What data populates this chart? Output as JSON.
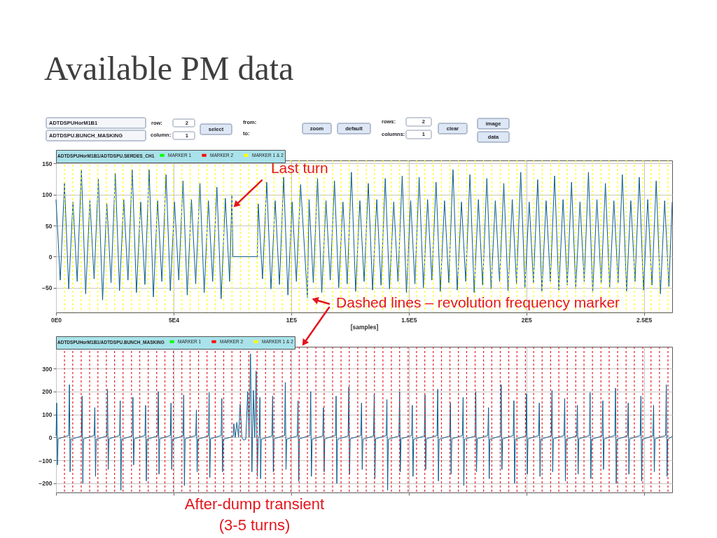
{
  "chart_data": [
    {
      "type": "other",
      "annotations": [
        "ADTDSPUHorM1B1",
        "ADTDSPU.BUNCH_MASKING",
        "row:",
        "2",
        "column:",
        "1",
        "select",
        "from:",
        "to:",
        "zoom",
        "default",
        "rows:",
        "2",
        "columns:",
        "1",
        "clear",
        "image",
        "data"
      ]
    },
    {
      "type": "line",
      "title": "Available PM data",
      "xlabel": "[samples]",
      "legend_title": "ADTDSPUHorM1B1/ADTDSPU.SERDES_CH1",
      "legend": "top left",
      "grid": true,
      "xlim": [
        0,
        262000
      ],
      "ylim": [
        -90,
        155
      ],
      "xticks": [
        {
          "value": 0,
          "label": "0E0"
        },
        {
          "value": 50000,
          "label": "5E4"
        },
        {
          "value": 100000,
          "label": "1E5"
        },
        {
          "value": 150000,
          "label": "1.5E5"
        },
        {
          "value": 200000,
          "label": "2E5"
        },
        {
          "value": 250000,
          "label": "2.5E5"
        }
      ],
      "yticks": [
        -50,
        0,
        50,
        100,
        150
      ],
      "series": [
        {
          "color": "#0b5c8c",
          "x": [
            0,
            1800,
            3600,
            5400,
            7200,
            9000,
            10800,
            12600,
            14400,
            16200,
            18000,
            19800,
            21600,
            23400,
            25200,
            27000,
            28800,
            30600,
            32400,
            34200,
            36000,
            37800,
            39600,
            41400,
            43200,
            45000,
            46800,
            48600,
            50400,
            52200,
            54000,
            55800,
            57600,
            59400,
            61200,
            63000,
            64800,
            66600,
            68400,
            70200,
            72000,
            73800,
            74800,
            75200,
            85600,
            86000,
            87800,
            89600,
            91400,
            93200,
            95000,
            96800,
            98600,
            100400,
            102200,
            104000,
            106900,
            107600,
            109400,
            111200,
            113000,
            114800,
            116600,
            118400,
            120200,
            122000,
            123800,
            125600,
            127400,
            129200,
            131000,
            132800,
            134600,
            136400,
            138200,
            140000,
            141800,
            143600,
            145400,
            147200,
            149000,
            150800,
            152600,
            154400,
            156200,
            158000,
            159800,
            161600,
            163400,
            165200,
            167000,
            168800,
            170600,
            172400,
            174200,
            176000,
            177800,
            179600,
            181400,
            183200,
            185000,
            186800,
            188600,
            190400,
            192200,
            194000,
            195800,
            197600,
            199400,
            201200,
            203000,
            204800,
            206600,
            208400,
            210200,
            212000,
            213800,
            215600,
            217400,
            219200,
            221000,
            222800,
            224600,
            226400,
            228200,
            230000,
            231800,
            233600,
            235400,
            237200,
            239000,
            240800,
            242600,
            244400,
            246200,
            248000,
            249800,
            251600,
            253400,
            255200,
            257000,
            258800,
            260600,
            262000
          ],
          "values": [
            92,
            -38,
            118,
            -52,
            88,
            -40,
            140,
            -60,
            90,
            -36,
            125,
            -70,
            86,
            -42,
            134,
            -55,
            92,
            -38,
            140,
            -58,
            88,
            -45,
            140,
            -65,
            90,
            -40,
            132,
            -55,
            88,
            -38,
            122,
            -62,
            92,
            -44,
            118,
            -58,
            90,
            -40,
            112,
            -68,
            94,
            -40,
            100,
            0,
            0,
            85,
            -36,
            120,
            -52,
            90,
            -45,
            128,
            -62,
            88,
            -40,
            116,
            -66,
            92,
            -42,
            126,
            -58,
            90,
            -38,
            122,
            -50,
            88,
            -44,
            136,
            -56,
            90,
            -40,
            118,
            -54,
            92,
            -46,
            126,
            -52,
            88,
            -40,
            130,
            -58,
            90,
            -44,
            128,
            -50,
            92,
            -38,
            120,
            -56,
            90,
            -42,
            140,
            -54,
            88,
            -40,
            132,
            -58,
            92,
            -46,
            126,
            -52,
            90,
            -40,
            118,
            -55,
            92,
            -44,
            136,
            -50,
            88,
            -42,
            124,
            -56,
            90,
            -40,
            130,
            -54,
            92,
            -46,
            120,
            -52,
            88,
            -40,
            136,
            -58,
            92,
            -44,
            118,
            -50,
            90,
            -42,
            132,
            -56,
            90,
            -40,
            128,
            -54,
            92,
            -46,
            122,
            -60,
            90,
            -48,
            88
          ]
        },
        {
          "name": "MARKER 1",
          "color": "#00ff00"
        },
        {
          "name": "MARKER 2",
          "color": "#ff0000"
        },
        {
          "name": "MARKER 1 & 2",
          "color": "#ffff00"
        }
      ],
      "ref_lines": [
        {
          "axis": "x",
          "value": 3600,
          "color": "#ffff00",
          "line_style": "dashed"
        },
        {
          "axis": "x",
          "value": 7100,
          "color": "#ffff00",
          "line_style": "dashed"
        },
        {
          "axis": "x",
          "value": 10700,
          "color": "#ffff00",
          "line_style": "dashed"
        },
        {
          "axis": "x",
          "value": 14300,
          "color": "#ffff00",
          "line_style": "dashed"
        },
        {
          "axis": "x",
          "value": 17800,
          "color": "#ffff00",
          "line_style": "dashed"
        },
        {
          "axis": "x",
          "value": 21400,
          "color": "#ffff00",
          "line_style": "dashed"
        },
        {
          "axis": "x",
          "value": 24900,
          "color": "#ffff00",
          "line_style": "dashed"
        },
        {
          "axis": "x",
          "value": 28500,
          "color": "#ffff00",
          "line_style": "dashed"
        },
        {
          "axis": "x",
          "value": 32100,
          "color": "#ffff00",
          "line_style": "dashed"
        },
        {
          "axis": "x",
          "value": 35600,
          "color": "#ffff00",
          "line_style": "dashed"
        },
        {
          "axis": "x",
          "value": 39200,
          "color": "#ffff00",
          "line_style": "dashed"
        },
        {
          "axis": "x",
          "value": 42800,
          "color": "#ffff00",
          "line_style": "dashed"
        },
        {
          "axis": "x",
          "value": 46300,
          "color": "#ffff00",
          "line_style": "dashed"
        },
        {
          "axis": "x",
          "value": 49900,
          "color": "#ffff00",
          "line_style": "dashed"
        },
        {
          "axis": "x",
          "value": 53500,
          "color": "#ffff00",
          "line_style": "dashed"
        },
        {
          "axis": "x",
          "value": 57000,
          "color": "#ffff00",
          "line_style": "dashed"
        },
        {
          "axis": "x",
          "value": 60600,
          "color": "#ffff00",
          "line_style": "dashed"
        },
        {
          "axis": "x",
          "value": 64200,
          "color": "#ffff00",
          "line_style": "dashed"
        },
        {
          "axis": "x",
          "value": 67700,
          "color": "#ffff00",
          "line_style": "dashed"
        },
        {
          "axis": "x",
          "value": 71300,
          "color": "#ffff00",
          "line_style": "dashed"
        },
        {
          "axis": "x",
          "value": 74800,
          "color": "#ffff00",
          "line_style": "dashed"
        },
        {
          "axis": "x",
          "value": 78400,
          "color": "#ffff00",
          "line_style": "dashed"
        },
        {
          "axis": "x",
          "value": 82000,
          "color": "#ffff00",
          "line_style": "dashed"
        },
        {
          "axis": "x",
          "value": 85500,
          "color": "#ffff00",
          "line_style": "dashed"
        },
        {
          "axis": "x",
          "value": 89100,
          "color": "#ffff00",
          "line_style": "dashed"
        },
        {
          "axis": "x",
          "value": 92700,
          "color": "#ffff00",
          "line_style": "dashed"
        },
        {
          "axis": "x",
          "value": 96200,
          "color": "#ffff00",
          "line_style": "dashed"
        },
        {
          "axis": "x",
          "value": 99800,
          "color": "#ffff00",
          "line_style": "dashed"
        },
        {
          "axis": "x",
          "value": 103400,
          "color": "#ffff00",
          "line_style": "dashed"
        },
        {
          "axis": "x",
          "value": 106900,
          "color": "#ffff00",
          "line_style": "dashed"
        },
        {
          "axis": "x",
          "value": 110500,
          "color": "#ffff00",
          "line_style": "dashed"
        },
        {
          "axis": "x",
          "value": 114000,
          "color": "#ffff00",
          "line_style": "dashed"
        },
        {
          "axis": "x",
          "value": 117600,
          "color": "#ffff00",
          "line_style": "dashed"
        },
        {
          "axis": "x",
          "value": 121200,
          "color": "#ffff00",
          "line_style": "dashed"
        },
        {
          "axis": "x",
          "value": 124700,
          "color": "#ffff00",
          "line_style": "dashed"
        },
        {
          "axis": "x",
          "value": 128300,
          "color": "#ffff00",
          "line_style": "dashed"
        },
        {
          "axis": "x",
          "value": 131900,
          "color": "#ffff00",
          "line_style": "dashed"
        },
        {
          "axis": "x",
          "value": 135400,
          "color": "#ffff00",
          "line_style": "dashed"
        },
        {
          "axis": "x",
          "value": 139000,
          "color": "#ffff00",
          "line_style": "dashed"
        },
        {
          "axis": "x",
          "value": 142600,
          "color": "#ffff00",
          "line_style": "dashed"
        },
        {
          "axis": "x",
          "value": 146100,
          "color": "#ffff00",
          "line_style": "dashed"
        },
        {
          "axis": "x",
          "value": 149700,
          "color": "#ffff00",
          "line_style": "dashed"
        },
        {
          "axis": "x",
          "value": 153300,
          "color": "#ffff00",
          "line_style": "dashed"
        },
        {
          "axis": "x",
          "value": 156800,
          "color": "#ffff00",
          "line_style": "dashed"
        },
        {
          "axis": "x",
          "value": 160400,
          "color": "#ffff00",
          "line_style": "dashed"
        },
        {
          "axis": "x",
          "value": 163900,
          "color": "#ffff00",
          "line_style": "dashed"
        },
        {
          "axis": "x",
          "value": 167500,
          "color": "#ffff00",
          "line_style": "dashed"
        },
        {
          "axis": "x",
          "value": 171100,
          "color": "#ffff00",
          "line_style": "dashed"
        },
        {
          "axis": "x",
          "value": 174600,
          "color": "#ffff00",
          "line_style": "dashed"
        },
        {
          "axis": "x",
          "value": 178200,
          "color": "#ffff00",
          "line_style": "dashed"
        },
        {
          "axis": "x",
          "value": 181800,
          "color": "#ffff00",
          "line_style": "dashed"
        },
        {
          "axis": "x",
          "value": 185300,
          "color": "#ffff00",
          "line_style": "dashed"
        },
        {
          "axis": "x",
          "value": 188900,
          "color": "#ffff00",
          "line_style": "dashed"
        },
        {
          "axis": "x",
          "value": 192500,
          "color": "#ffff00",
          "line_style": "dashed"
        },
        {
          "axis": "x",
          "value": 196000,
          "color": "#ffff00",
          "line_style": "dashed"
        },
        {
          "axis": "x",
          "value": 199600,
          "color": "#ffff00",
          "line_style": "dashed"
        },
        {
          "axis": "x",
          "value": 203100,
          "color": "#ffff00",
          "line_style": "dashed"
        },
        {
          "axis": "x",
          "value": 206700,
          "color": "#ffff00",
          "line_style": "dashed"
        },
        {
          "axis": "x",
          "value": 210300,
          "color": "#ffff00",
          "line_style": "dashed"
        },
        {
          "axis": "x",
          "value": 213800,
          "color": "#ffff00",
          "line_style": "dashed"
        },
        {
          "axis": "x",
          "value": 217400,
          "color": "#ffff00",
          "line_style": "dashed"
        },
        {
          "axis": "x",
          "value": 221000,
          "color": "#ffff00",
          "line_style": "dashed"
        },
        {
          "axis": "x",
          "value": 224500,
          "color": "#ffff00",
          "line_style": "dashed"
        },
        {
          "axis": "x",
          "value": 228100,
          "color": "#ffff00",
          "line_style": "dashed"
        },
        {
          "axis": "x",
          "value": 231700,
          "color": "#ffff00",
          "line_style": "dashed"
        },
        {
          "axis": "x",
          "value": 235200,
          "color": "#ffff00",
          "line_style": "dashed"
        },
        {
          "axis": "x",
          "value": 238800,
          "color": "#ffff00",
          "line_style": "dashed"
        },
        {
          "axis": "x",
          "value": 242400,
          "color": "#ffff00",
          "line_style": "dashed"
        },
        {
          "axis": "x",
          "value": 245900,
          "color": "#ffff00",
          "line_style": "dashed"
        },
        {
          "axis": "x",
          "value": 249500,
          "color": "#ffff00",
          "line_style": "dashed"
        },
        {
          "axis": "x",
          "value": 253000,
          "color": "#ffff00",
          "line_style": "dashed"
        },
        {
          "axis": "x",
          "value": 256600,
          "color": "#ffff00",
          "line_style": "dashed"
        },
        {
          "axis": "x",
          "value": 260200,
          "color": "#ffff00",
          "line_style": "dashed"
        }
      ],
      "annotations": [
        {
          "text": "Last turn",
          "x": 75600,
          "y": 80
        },
        {
          "text": "Dashed lines – revolution frequency marker",
          "x": 106900,
          "y": -66
        }
      ]
    },
    {
      "type": "line",
      "legend_title": "ADTDSPUHorM1B1/ADTDSPU.BUNCH_MASKING",
      "legend": "top left",
      "grid": true,
      "tick_labels": "y",
      "xlim": [
        0,
        262000
      ],
      "ylim": [
        -240,
        395
      ],
      "xticks": [
        0,
        50000,
        100000,
        150000,
        200000,
        250000
      ],
      "yticks": [
        -200,
        -100,
        0,
        100,
        200,
        300
      ],
      "series": [
        {
          "color": "#0b5c8c",
          "x": [
            0,
            300,
            600,
            900,
            5400,
            5700,
            6000,
            6300,
            10800,
            11100,
            11400,
            11700,
            16200,
            16500,
            16800,
            17100,
            21600,
            21900,
            22200,
            22500,
            27000,
            27300,
            27600,
            27900,
            32400,
            32700,
            33000,
            33300,
            37800,
            38100,
            38400,
            38700,
            43200,
            43500,
            43800,
            44100,
            48600,
            48900,
            49200,
            49500,
            54000,
            54300,
            54600,
            54900,
            59400,
            59700,
            60000,
            60300,
            64800,
            65100,
            65400,
            65700,
            70200,
            70500,
            70800,
            71100,
            75400,
            75600,
            76200,
            76900,
            77600,
            78300,
            79000,
            79800,
            80700,
            81500,
            82100,
            82700,
            83300,
            83900,
            84500,
            85100,
            85600,
            86000,
            86400,
            86700,
            87000,
            87300,
            91800,
            92100,
            92400,
            92700,
            97200,
            97500,
            97800,
            98100,
            102600,
            102900,
            103200,
            103500,
            108000,
            108300,
            108600,
            108900,
            113400,
            113700,
            114000,
            114300,
            118800,
            119100,
            119400,
            119700,
            124200,
            124500,
            124800,
            125100,
            129600,
            129900,
            130200,
            130500,
            135000,
            135300,
            135600,
            135900,
            140400,
            140700,
            141000,
            141300,
            145800,
            146100,
            146400,
            146700,
            151200,
            151500,
            151800,
            152100,
            156600,
            156900,
            157200,
            157500,
            162000,
            162300,
            162600,
            162900,
            167400,
            167700,
            168000,
            168300,
            172800,
            173100,
            173400,
            173700,
            178200,
            178500,
            178800,
            179100,
            183600,
            183900,
            184200,
            184500,
            189000,
            189300,
            189600,
            189900,
            194400,
            194700,
            195000,
            195300,
            199800,
            200100,
            200400,
            200700,
            205200,
            205500,
            205800,
            206100,
            210600,
            210900,
            211200,
            211500,
            216000,
            216300,
            216600,
            216900,
            221400,
            221700,
            222000,
            222300,
            226800,
            227100,
            227400,
            227700,
            232200,
            232500,
            232800,
            233100,
            237600,
            237900,
            238200,
            238500,
            243000,
            243300,
            243600,
            243900,
            248400,
            248700,
            249000,
            249300,
            253800,
            254100,
            254400,
            254700,
            259200,
            259500,
            259800,
            260100,
            262000
          ],
          "values": [
            6,
            150,
            -120,
            -6,
            8,
            230,
            -150,
            -8,
            5,
            180,
            -200,
            -6,
            8,
            130,
            -170,
            -8,
            6,
            210,
            -140,
            -6,
            8,
            160,
            -230,
            -8,
            6,
            175,
            -120,
            -6,
            8,
            140,
            -190,
            -8,
            6,
            200,
            -160,
            -6,
            8,
            150,
            -140,
            -8,
            6,
            185,
            -210,
            -6,
            8,
            120,
            -150,
            -8,
            6,
            195,
            -175,
            -6,
            8,
            170,
            -150,
            -8,
            4,
            60,
            0,
            66,
            2,
            145,
            0,
            -12,
            -8,
            200,
            0,
            364,
            -150,
            205,
            0,
            289,
            -170,
            -6,
            8,
            175,
            -180,
            -8,
            6,
            180,
            -150,
            -6,
            8,
            240,
            -140,
            -8,
            6,
            160,
            -190,
            -6,
            8,
            200,
            -170,
            -8,
            6,
            130,
            -150,
            -6,
            8,
            180,
            -200,
            -8,
            6,
            220,
            -160,
            -6,
            8,
            150,
            -140,
            -8,
            6,
            190,
            -180,
            -6,
            8,
            165,
            -230,
            -8,
            6,
            200,
            -150,
            -6,
            8,
            140,
            -170,
            -8,
            6,
            185,
            -140,
            -6,
            8,
            210,
            -190,
            -8,
            6,
            150,
            -160,
            -6,
            8,
            175,
            -210,
            -8,
            6,
            200,
            -150,
            -6,
            8,
            130,
            -180,
            -8,
            6,
            230,
            -140,
            -6,
            8,
            160,
            -200,
            -8,
            6,
            190,
            -160,
            -6,
            8,
            150,
            -170,
            -8,
            6,
            205,
            -150,
            -6,
            8,
            170,
            -190,
            -8,
            6,
            140,
            -160,
            -6,
            8,
            195,
            -180,
            -8,
            6,
            160,
            -140,
            -6,
            8,
            215,
            -200,
            -8,
            6,
            150,
            -160,
            -6,
            8,
            180,
            -190,
            -8,
            6,
            140,
            -150,
            -6,
            8,
            230,
            -170,
            -8,
            4
          ]
        },
        {
          "name": "MARKER 1",
          "color": "#00ff00"
        },
        {
          "name": "MARKER 2",
          "color": "#ff0000"
        },
        {
          "name": "MARKER 1 & 2",
          "color": "#ffff00"
        }
      ],
      "ref_lines": [
        {
          "axis": "x",
          "value": 3600,
          "color": "#ee1c25",
          "line_style": "dashed"
        },
        {
          "axis": "x",
          "value": 7100,
          "color": "#ee1c25",
          "line_style": "dashed"
        },
        {
          "axis": "x",
          "value": 10700,
          "color": "#ee1c25",
          "line_style": "dashed"
        },
        {
          "axis": "x",
          "value": 14300,
          "color": "#ee1c25",
          "line_style": "dashed"
        },
        {
          "axis": "x",
          "value": 17800,
          "color": "#ee1c25",
          "line_style": "dashed"
        },
        {
          "axis": "x",
          "value": 21400,
          "color": "#ee1c25",
          "line_style": "dashed"
        },
        {
          "axis": "x",
          "value": 24900,
          "color": "#ee1c25",
          "line_style": "dashed"
        },
        {
          "axis": "x",
          "value": 28500,
          "color": "#ee1c25",
          "line_style": "dashed"
        },
        {
          "axis": "x",
          "value": 32100,
          "color": "#ee1c25",
          "line_style": "dashed"
        },
        {
          "axis": "x",
          "value": 35600,
          "color": "#ee1c25",
          "line_style": "dashed"
        },
        {
          "axis": "x",
          "value": 39200,
          "color": "#ee1c25",
          "line_style": "dashed"
        },
        {
          "axis": "x",
          "value": 42800,
          "color": "#ee1c25",
          "line_style": "dashed"
        },
        {
          "axis": "x",
          "value": 46300,
          "color": "#ee1c25",
          "line_style": "dashed"
        },
        {
          "axis": "x",
          "value": 49900,
          "color": "#ee1c25",
          "line_style": "dashed"
        },
        {
          "axis": "x",
          "value": 53500,
          "color": "#ee1c25",
          "line_style": "dashed"
        },
        {
          "axis": "x",
          "value": 57000,
          "color": "#ee1c25",
          "line_style": "dashed"
        },
        {
          "axis": "x",
          "value": 60600,
          "color": "#ee1c25",
          "line_style": "dashed"
        },
        {
          "axis": "x",
          "value": 64200,
          "color": "#ee1c25",
          "line_style": "dashed"
        },
        {
          "axis": "x",
          "value": 67700,
          "color": "#ee1c25",
          "line_style": "dashed"
        },
        {
          "axis": "x",
          "value": 71300,
          "color": "#ee1c25",
          "line_style": "dashed"
        },
        {
          "axis": "x",
          "value": 74800,
          "color": "#ee1c25",
          "line_style": "dashed"
        },
        {
          "axis": "x",
          "value": 78400,
          "color": "#ee1c25",
          "line_style": "dashed"
        },
        {
          "axis": "x",
          "value": 82000,
          "color": "#ee1c25",
          "line_style": "dashed"
        },
        {
          "axis": "x",
          "value": 85500,
          "color": "#ee1c25",
          "line_style": "dashed"
        },
        {
          "axis": "x",
          "value": 89100,
          "color": "#ee1c25",
          "line_style": "dashed"
        },
        {
          "axis": "x",
          "value": 92700,
          "color": "#ee1c25",
          "line_style": "dashed"
        },
        {
          "axis": "x",
          "value": 96200,
          "color": "#ee1c25",
          "line_style": "dashed"
        },
        {
          "axis": "x",
          "value": 99800,
          "color": "#ee1c25",
          "line_style": "dashed"
        },
        {
          "axis": "x",
          "value": 103400,
          "color": "#ee1c25",
          "line_style": "dashed"
        },
        {
          "axis": "x",
          "value": 106900,
          "color": "#ee1c25",
          "line_style": "dashed"
        },
        {
          "axis": "x",
          "value": 110500,
          "color": "#ee1c25",
          "line_style": "dashed"
        },
        {
          "axis": "x",
          "value": 114000,
          "color": "#ee1c25",
          "line_style": "dashed"
        },
        {
          "axis": "x",
          "value": 117600,
          "color": "#ee1c25",
          "line_style": "dashed"
        },
        {
          "axis": "x",
          "value": 121200,
          "color": "#ee1c25",
          "line_style": "dashed"
        },
        {
          "axis": "x",
          "value": 124700,
          "color": "#ee1c25",
          "line_style": "dashed"
        },
        {
          "axis": "x",
          "value": 128300,
          "color": "#ee1c25",
          "line_style": "dashed"
        },
        {
          "axis": "x",
          "value": 131900,
          "color": "#ee1c25",
          "line_style": "dashed"
        },
        {
          "axis": "x",
          "value": 135400,
          "color": "#ee1c25",
          "line_style": "dashed"
        },
        {
          "axis": "x",
          "value": 139000,
          "color": "#ee1c25",
          "line_style": "dashed"
        },
        {
          "axis": "x",
          "value": 142600,
          "color": "#ee1c25",
          "line_style": "dashed"
        },
        {
          "axis": "x",
          "value": 146100,
          "color": "#ee1c25",
          "line_style": "dashed"
        },
        {
          "axis": "x",
          "value": 149700,
          "color": "#ee1c25",
          "line_style": "dashed"
        },
        {
          "axis": "x",
          "value": 153300,
          "color": "#ee1c25",
          "line_style": "dashed"
        },
        {
          "axis": "x",
          "value": 156800,
          "color": "#ee1c25",
          "line_style": "dashed"
        },
        {
          "axis": "x",
          "value": 160400,
          "color": "#ee1c25",
          "line_style": "dashed"
        },
        {
          "axis": "x",
          "value": 163900,
          "color": "#ee1c25",
          "line_style": "dashed"
        },
        {
          "axis": "x",
          "value": 167500,
          "color": "#ee1c25",
          "line_style": "dashed"
        },
        {
          "axis": "x",
          "value": 171100,
          "color": "#ee1c25",
          "line_style": "dashed"
        },
        {
          "axis": "x",
          "value": 174600,
          "color": "#ee1c25",
          "line_style": "dashed"
        },
        {
          "axis": "x",
          "value": 178200,
          "color": "#ee1c25",
          "line_style": "dashed"
        },
        {
          "axis": "x",
          "value": 181800,
          "color": "#ee1c25",
          "line_style": "dashed"
        },
        {
          "axis": "x",
          "value": 185300,
          "color": "#ee1c25",
          "line_style": "dashed"
        },
        {
          "axis": "x",
          "value": 188900,
          "color": "#ee1c25",
          "line_style": "dashed"
        },
        {
          "axis": "x",
          "value": 192500,
          "color": "#ee1c25",
          "line_style": "dashed"
        },
        {
          "axis": "x",
          "value": 196000,
          "color": "#ee1c25",
          "line_style": "dashed"
        },
        {
          "axis": "x",
          "value": 199600,
          "color": "#ee1c25",
          "line_style": "dashed"
        },
        {
          "axis": "x",
          "value": 203100,
          "color": "#ee1c25",
          "line_style": "dashed"
        },
        {
          "axis": "x",
          "value": 206700,
          "color": "#ee1c25",
          "line_style": "dashed"
        },
        {
          "axis": "x",
          "value": 210300,
          "color": "#ee1c25",
          "line_style": "dashed"
        },
        {
          "axis": "x",
          "value": 213800,
          "color": "#ee1c25",
          "line_style": "dashed"
        },
        {
          "axis": "x",
          "value": 217400,
          "color": "#ee1c25",
          "line_style": "dashed"
        },
        {
          "axis": "x",
          "value": 221000,
          "color": "#ee1c25",
          "line_style": "dashed"
        },
        {
          "axis": "x",
          "value": 224500,
          "color": "#ee1c25",
          "line_style": "dashed"
        },
        {
          "axis": "x",
          "value": 228100,
          "color": "#ee1c25",
          "line_style": "dashed"
        },
        {
          "axis": "x",
          "value": 231700,
          "color": "#ee1c25",
          "line_style": "dashed"
        },
        {
          "axis": "x",
          "value": 235200,
          "color": "#ee1c25",
          "line_style": "dashed"
        },
        {
          "axis": "x",
          "value": 238800,
          "color": "#ee1c25",
          "line_style": "dashed"
        },
        {
          "axis": "x",
          "value": 242400,
          "color": "#ee1c25",
          "line_style": "dashed"
        },
        {
          "axis": "x",
          "value": 245900,
          "color": "#ee1c25",
          "line_style": "dashed"
        },
        {
          "axis": "x",
          "value": 249500,
          "color": "#ee1c25",
          "line_style": "dashed"
        },
        {
          "axis": "x",
          "value": 253000,
          "color": "#ee1c25",
          "line_style": "dashed"
        },
        {
          "axis": "x",
          "value": 256600,
          "color": "#ee1c25",
          "line_style": "dashed"
        },
        {
          "axis": "x",
          "value": 260200,
          "color": "#ee1c25",
          "line_style": "dashed"
        }
      ],
      "annotations": [
        "After-dump transient",
        "(3-5 turns)"
      ]
    }
  ]
}
